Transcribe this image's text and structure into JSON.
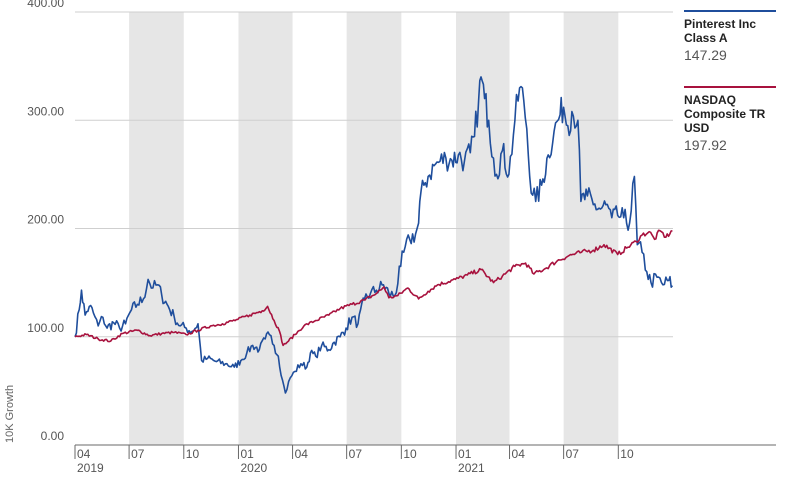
{
  "colors": {
    "pinterest": "#1f4e9c",
    "nasdaq": "#a8123e",
    "shade": "#e6e6e6",
    "grid": "#cfcfcf",
    "axis": "#6a6a6a"
  },
  "legend": [
    {
      "name": "Pinterest Inc Class A",
      "value": "147.29",
      "color_key": "pinterest"
    },
    {
      "name": "NASDAQ Composite TR USD",
      "value": "197.92",
      "color_key": "nasdaq"
    }
  ],
  "chart_data": {
    "type": "line",
    "title": "",
    "xlabel": "",
    "ylabel": "10K Growth",
    "ylim": [
      0,
      400
    ],
    "y_ticks": [
      "0.00",
      "100.00",
      "200.00",
      "300.00",
      "400.00"
    ],
    "x_tick_labels": [
      {
        "month": "04",
        "year": "2019",
        "date": "2019-04"
      },
      {
        "month": "07",
        "year": "",
        "date": "2019-07"
      },
      {
        "month": "10",
        "year": "",
        "date": "2019-10"
      },
      {
        "month": "01",
        "year": "2020",
        "date": "2020-01"
      },
      {
        "month": "04",
        "year": "",
        "date": "2020-04"
      },
      {
        "month": "07",
        "year": "",
        "date": "2020-07"
      },
      {
        "month": "10",
        "year": "",
        "date": "2020-10"
      },
      {
        "month": "01",
        "year": "2021",
        "date": "2021-01"
      },
      {
        "month": "04",
        "year": "",
        "date": "2021-04"
      },
      {
        "month": "07",
        "year": "",
        "date": "2021-07"
      },
      {
        "month": "10",
        "year": "",
        "date": "2021-10"
      }
    ],
    "x_range": [
      "2019-04-01",
      "2022-01-01"
    ],
    "shaded_periods": [
      [
        "2019-07-01",
        "2019-10-01"
      ],
      [
        "2020-01-01",
        "2020-04-01"
      ],
      [
        "2020-07-01",
        "2020-10-01"
      ],
      [
        "2021-01-01",
        "2021-04-01"
      ],
      [
        "2021-07-01",
        "2021-10-01"
      ]
    ],
    "grid": true,
    "legend_position": "right",
    "series": [
      {
        "name": "Pinterest Inc Class A",
        "color_key": "pinterest",
        "points": [
          [
            "2019-04-01",
            100
          ],
          [
            "2019-04-08",
            125
          ],
          [
            "2019-04-12",
            143
          ],
          [
            "2019-04-18",
            120
          ],
          [
            "2019-04-25",
            128
          ],
          [
            "2019-05-02",
            122
          ],
          [
            "2019-05-10",
            110
          ],
          [
            "2019-05-18",
            118
          ],
          [
            "2019-05-25",
            108
          ],
          [
            "2019-06-05",
            113
          ],
          [
            "2019-06-15",
            108
          ],
          [
            "2019-06-25",
            112
          ],
          [
            "2019-07-05",
            125
          ],
          [
            "2019-07-15",
            130
          ],
          [
            "2019-07-25",
            135
          ],
          [
            "2019-08-02",
            153
          ],
          [
            "2019-08-10",
            145
          ],
          [
            "2019-08-18",
            148
          ],
          [
            "2019-08-25",
            138
          ],
          [
            "2019-09-05",
            128
          ],
          [
            "2019-09-15",
            118
          ],
          [
            "2019-09-25",
            110
          ],
          [
            "2019-10-05",
            108
          ],
          [
            "2019-10-15",
            105
          ],
          [
            "2019-10-25",
            112
          ],
          [
            "2019-10-31",
            78
          ],
          [
            "2019-11-10",
            80
          ],
          [
            "2019-11-25",
            77
          ],
          [
            "2019-12-10",
            75
          ],
          [
            "2019-12-25",
            72
          ],
          [
            "2020-01-05",
            78
          ],
          [
            "2020-01-15",
            85
          ],
          [
            "2020-01-25",
            92
          ],
          [
            "2020-02-05",
            88
          ],
          [
            "2020-02-15",
            98
          ],
          [
            "2020-02-22",
            102
          ],
          [
            "2020-03-01",
            92
          ],
          [
            "2020-03-08",
            82
          ],
          [
            "2020-03-15",
            60
          ],
          [
            "2020-03-20",
            48
          ],
          [
            "2020-03-28",
            62
          ],
          [
            "2020-04-05",
            68
          ],
          [
            "2020-04-15",
            75
          ],
          [
            "2020-04-25",
            72
          ],
          [
            "2020-05-01",
            85
          ],
          [
            "2020-05-10",
            82
          ],
          [
            "2020-05-20",
            92
          ],
          [
            "2020-06-01",
            88
          ],
          [
            "2020-06-10",
            95
          ],
          [
            "2020-06-20",
            100
          ],
          [
            "2020-06-30",
            108
          ],
          [
            "2020-07-10",
            118
          ],
          [
            "2020-07-20",
            112
          ],
          [
            "2020-07-31",
            135
          ],
          [
            "2020-08-10",
            140
          ],
          [
            "2020-08-20",
            143
          ],
          [
            "2020-09-01",
            148
          ],
          [
            "2020-09-10",
            140
          ],
          [
            "2020-09-20",
            138
          ],
          [
            "2020-09-30",
            165
          ],
          [
            "2020-10-05",
            178
          ],
          [
            "2020-10-15",
            190
          ],
          [
            "2020-10-25",
            195
          ],
          [
            "2020-10-30",
            205
          ],
          [
            "2020-11-01",
            225
          ],
          [
            "2020-11-08",
            240
          ],
          [
            "2020-11-15",
            248
          ],
          [
            "2020-11-25",
            258
          ],
          [
            "2020-12-05",
            262
          ],
          [
            "2020-12-15",
            265
          ],
          [
            "2020-12-25",
            263
          ],
          [
            "2021-01-05",
            268
          ],
          [
            "2021-01-15",
            262
          ],
          [
            "2021-01-25",
            270
          ],
          [
            "2021-02-01",
            285
          ],
          [
            "2021-02-08",
            318
          ],
          [
            "2021-02-12",
            340
          ],
          [
            "2021-02-18",
            320
          ],
          [
            "2021-02-25",
            300
          ],
          [
            "2021-03-05",
            265
          ],
          [
            "2021-03-10",
            250
          ],
          [
            "2021-03-20",
            272
          ],
          [
            "2021-03-31",
            250
          ],
          [
            "2021-04-10",
            300
          ],
          [
            "2021-04-18",
            330
          ],
          [
            "2021-04-25",
            318
          ],
          [
            "2021-04-30",
            292
          ],
          [
            "2021-05-05",
            248
          ],
          [
            "2021-05-15",
            225
          ],
          [
            "2021-05-25",
            240
          ],
          [
            "2021-06-05",
            268
          ],
          [
            "2021-06-15",
            290
          ],
          [
            "2021-06-25",
            305
          ],
          [
            "2021-07-01",
            312
          ],
          [
            "2021-07-08",
            295
          ],
          [
            "2021-07-15",
            308
          ],
          [
            "2021-07-25",
            300
          ],
          [
            "2021-07-30",
            225
          ],
          [
            "2021-08-10",
            230
          ],
          [
            "2021-08-20",
            222
          ],
          [
            "2021-09-01",
            218
          ],
          [
            "2021-09-10",
            222
          ],
          [
            "2021-09-20",
            210
          ],
          [
            "2021-09-30",
            212
          ],
          [
            "2021-10-10",
            210
          ],
          [
            "2021-10-20",
            205
          ],
          [
            "2021-10-28",
            248
          ],
          [
            "2021-11-02",
            185
          ],
          [
            "2021-11-10",
            178
          ],
          [
            "2021-11-18",
            160
          ],
          [
            "2021-11-25",
            150
          ],
          [
            "2021-12-05",
            155
          ],
          [
            "2021-12-15",
            148
          ],
          [
            "2021-12-25",
            152
          ],
          [
            "2021-12-31",
            147.29
          ]
        ]
      },
      {
        "name": "NASDAQ Composite TR USD",
        "color_key": "nasdaq",
        "points": [
          [
            "2019-04-01",
            100
          ],
          [
            "2019-04-20",
            102
          ],
          [
            "2019-05-10",
            98
          ],
          [
            "2019-05-31",
            96
          ],
          [
            "2019-06-20",
            103
          ],
          [
            "2019-07-15",
            106
          ],
          [
            "2019-08-05",
            101
          ],
          [
            "2019-08-25",
            103
          ],
          [
            "2019-09-15",
            104
          ],
          [
            "2019-10-05",
            102
          ],
          [
            "2019-10-25",
            106
          ],
          [
            "2019-11-15",
            110
          ],
          [
            "2019-12-05",
            112
          ],
          [
            "2019-12-31",
            116
          ],
          [
            "2020-01-20",
            120
          ],
          [
            "2020-02-10",
            124
          ],
          [
            "2020-02-19",
            128
          ],
          [
            "2020-03-01",
            115
          ],
          [
            "2020-03-10",
            105
          ],
          [
            "2020-03-16",
            92
          ],
          [
            "2020-03-23",
            95
          ],
          [
            "2020-04-05",
            102
          ],
          [
            "2020-04-20",
            110
          ],
          [
            "2020-05-10",
            115
          ],
          [
            "2020-06-01",
            120
          ],
          [
            "2020-06-20",
            126
          ],
          [
            "2020-07-10",
            130
          ],
          [
            "2020-08-01",
            134
          ],
          [
            "2020-08-20",
            140
          ],
          [
            "2020-09-02",
            146
          ],
          [
            "2020-09-10",
            136
          ],
          [
            "2020-09-25",
            138
          ],
          [
            "2020-10-12",
            145
          ],
          [
            "2020-10-30",
            135
          ],
          [
            "2020-11-15",
            142
          ],
          [
            "2020-12-01",
            148
          ],
          [
            "2020-12-31",
            153
          ],
          [
            "2021-01-20",
            157
          ],
          [
            "2021-02-12",
            162
          ],
          [
            "2021-03-05",
            150
          ],
          [
            "2021-03-20",
            156
          ],
          [
            "2021-04-10",
            165
          ],
          [
            "2021-04-28",
            168
          ],
          [
            "2021-05-12",
            158
          ],
          [
            "2021-05-31",
            163
          ],
          [
            "2021-06-20",
            170
          ],
          [
            "2021-07-10",
            175
          ],
          [
            "2021-07-31",
            178
          ],
          [
            "2021-08-20",
            180
          ],
          [
            "2021-09-07",
            185
          ],
          [
            "2021-09-30",
            176
          ],
          [
            "2021-10-15",
            182
          ],
          [
            "2021-10-31",
            188
          ],
          [
            "2021-11-10",
            194
          ],
          [
            "2021-11-22",
            197
          ],
          [
            "2021-12-01",
            190
          ],
          [
            "2021-12-10",
            198
          ],
          [
            "2021-12-20",
            192
          ],
          [
            "2021-12-31",
            197.92
          ]
        ]
      }
    ]
  }
}
